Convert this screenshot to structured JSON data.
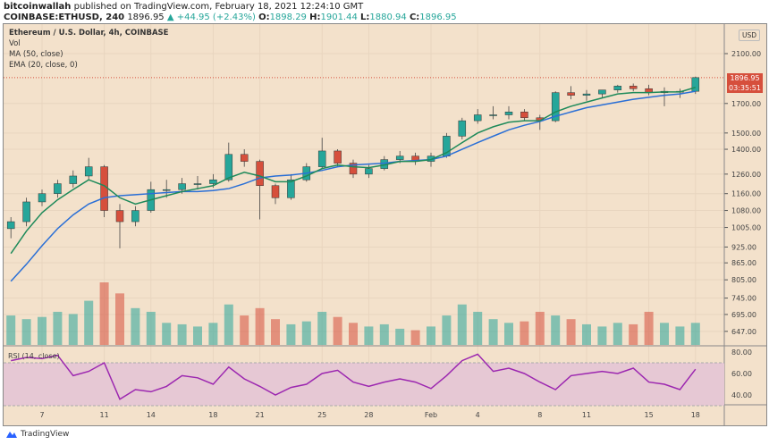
{
  "header": {
    "author": "bitcoinwallah",
    "published": "published on TradingView.com, February 18, 2021 12:24:10 GMT",
    "symbol": "COINBASE:ETHUSD, 240",
    "last": "1896.95",
    "change": "▲ +44.95 (+2.43%)",
    "o_label": "O:",
    "o": "1898.29",
    "h_label": "H:",
    "h": "1901.44",
    "l_label": "L:",
    "l": "1880.94",
    "c_label": "C:",
    "c": "1896.95"
  },
  "legend": {
    "title": "Ethereum / U.S. Dollar, 4h, COINBASE",
    "vol": "Vol",
    "ma": "MA (50, close)",
    "ema": "EMA (20, close, 0)",
    "rsi": "RSI (14, close)"
  },
  "price_axis": {
    "currency": "USD",
    "last_price": "1896.95",
    "countdown": "03:35:51"
  },
  "footer": {
    "brand": "TradingView"
  },
  "colors": {
    "background": "#f3e1cb",
    "up": "#26a69a",
    "down": "#d64f3c",
    "ma50": "#2a6fd6",
    "ema20": "#1e8a5a",
    "rsi": "#9c27b0",
    "rsi_band": "#e6c8d4"
  },
  "chart_data": {
    "type": "candlestick",
    "title": "Ethereum / U.S. Dollar, 4h, COINBASE",
    "y_scale": "log",
    "grid": true,
    "y_ticks": [
      2100,
      1700,
      1500,
      1400,
      1260,
      1160,
      1080,
      1005,
      925,
      865,
      805,
      745,
      695,
      647
    ],
    "y_tick_labels": [
      "2100.00",
      "1700.00",
      "1500.00",
      "1400.00",
      "1260.00",
      "1160.00",
      "1080.00",
      "1005.00",
      "925.00",
      "865.00",
      "805.00",
      "745.00",
      "695.00",
      "647.00"
    ],
    "x_ticks": [
      {
        "label": "7",
        "day": 7
      },
      {
        "label": "11",
        "day": 11
      },
      {
        "label": "14",
        "day": 14
      },
      {
        "label": "18",
        "day": 18
      },
      {
        "label": "21",
        "day": 21
      },
      {
        "label": "25",
        "day": 25
      },
      {
        "label": "28",
        "day": 28
      },
      {
        "label": "Feb",
        "day": 32
      },
      {
        "label": "4",
        "day": 35
      },
      {
        "label": "8",
        "day": 39
      },
      {
        "label": "11",
        "day": 42
      },
      {
        "label": "15",
        "day": 46
      },
      {
        "label": "18",
        "day": 49
      }
    ],
    "days": [
      5,
      6,
      7,
      8,
      9,
      10,
      11,
      12,
      13,
      14,
      15,
      16,
      17,
      18,
      19,
      20,
      21,
      22,
      23,
      24,
      25,
      26,
      27,
      28,
      29,
      30,
      31,
      32,
      33,
      34,
      35,
      36,
      37,
      38,
      39,
      40,
      41,
      42,
      43,
      44,
      45,
      46,
      47,
      48,
      49
    ],
    "open": [
      1000,
      1030,
      1120,
      1160,
      1210,
      1250,
      1300,
      1080,
      1030,
      1080,
      1180,
      1180,
      1210,
      1210,
      1230,
      1370,
      1330,
      1200,
      1140,
      1230,
      1300,
      1390,
      1320,
      1260,
      1290,
      1340,
      1360,
      1330,
      1360,
      1480,
      1580,
      1620,
      1620,
      1640,
      1600,
      1580,
      1780,
      1760,
      1770,
      1800,
      1830,
      1810,
      1780,
      1790,
      1790
    ],
    "high": [
      1050,
      1140,
      1180,
      1230,
      1280,
      1350,
      1310,
      1110,
      1100,
      1220,
      1230,
      1240,
      1250,
      1260,
      1440,
      1400,
      1340,
      1210,
      1260,
      1320,
      1470,
      1400,
      1340,
      1310,
      1360,
      1390,
      1380,
      1380,
      1500,
      1600,
      1660,
      1680,
      1680,
      1660,
      1620,
      1790,
      1830,
      1800,
      1800,
      1840,
      1850,
      1840,
      1820,
      1810,
      1905
    ],
    "low": [
      960,
      1010,
      1100,
      1140,
      1190,
      1230,
      1050,
      920,
      1010,
      1070,
      1140,
      1160,
      1180,
      1190,
      1220,
      1300,
      1040,
      1110,
      1130,
      1220,
      1290,
      1300,
      1240,
      1240,
      1280,
      1320,
      1310,
      1300,
      1350,
      1460,
      1560,
      1590,
      1590,
      1580,
      1520,
      1570,
      1730,
      1720,
      1740,
      1780,
      1790,
      1760,
      1680,
      1740,
      1770
    ],
    "close": [
      1030,
      1120,
      1160,
      1210,
      1250,
      1300,
      1080,
      1030,
      1080,
      1180,
      1180,
      1210,
      1210,
      1230,
      1370,
      1330,
      1200,
      1140,
      1230,
      1300,
      1390,
      1320,
      1260,
      1290,
      1340,
      1360,
      1330,
      1360,
      1480,
      1580,
      1620,
      1620,
      1640,
      1600,
      1580,
      1780,
      1760,
      1770,
      1800,
      1830,
      1810,
      1780,
      1790,
      1790,
      1897
    ],
    "volume": [
      40,
      35,
      38,
      45,
      42,
      60,
      85,
      70,
      50,
      45,
      30,
      28,
      25,
      30,
      55,
      40,
      50,
      35,
      28,
      32,
      45,
      38,
      30,
      25,
      28,
      22,
      20,
      25,
      40,
      55,
      45,
      35,
      30,
      32,
      45,
      40,
      35,
      28,
      25,
      30,
      28,
      45,
      30,
      25,
      30
    ],
    "ma50": [
      800,
      860,
      930,
      1000,
      1060,
      1110,
      1140,
      1150,
      1155,
      1160,
      1165,
      1170,
      1170,
      1175,
      1185,
      1210,
      1240,
      1250,
      1255,
      1265,
      1280,
      1300,
      1310,
      1315,
      1320,
      1330,
      1335,
      1340,
      1360,
      1400,
      1440,
      1480,
      1520,
      1550,
      1575,
      1610,
      1640,
      1670,
      1690,
      1710,
      1730,
      1745,
      1760,
      1770,
      1790
    ],
    "ema20": [
      900,
      990,
      1070,
      1130,
      1180,
      1230,
      1200,
      1140,
      1110,
      1130,
      1150,
      1170,
      1185,
      1200,
      1240,
      1270,
      1250,
      1220,
      1220,
      1250,
      1290,
      1310,
      1300,
      1295,
      1310,
      1330,
      1330,
      1340,
      1380,
      1440,
      1500,
      1540,
      1570,
      1580,
      1580,
      1640,
      1680,
      1710,
      1740,
      1770,
      1780,
      1780,
      1785,
      1785,
      1820
    ],
    "rsi": [
      72,
      75,
      74,
      77,
      58,
      62,
      70,
      36,
      45,
      43,
      48,
      58,
      56,
      50,
      66,
      55,
      48,
      40,
      47,
      50,
      60,
      63,
      52,
      48,
      52,
      55,
      52,
      46,
      58,
      72,
      78,
      62,
      65,
      60,
      52,
      45,
      58,
      60,
      62,
      60,
      65,
      52,
      50,
      45,
      64
    ],
    "rsi_ticks": [
      80,
      60,
      40
    ],
    "rsi_tick_labels": [
      "80.00",
      "60.00",
      "40.00"
    ],
    "rsi_band": [
      30,
      70
    ]
  }
}
